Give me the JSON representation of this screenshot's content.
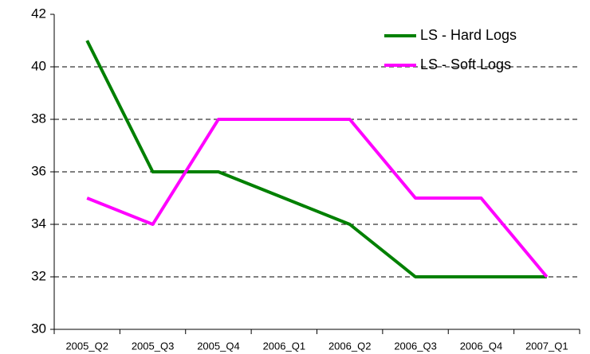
{
  "chart_data": {
    "type": "line",
    "categories": [
      "2005_Q2",
      "2005_Q3",
      "2005_Q4",
      "2006_Q1",
      "2006_Q2",
      "2006_Q3",
      "2006_Q4",
      "2007_Q1"
    ],
    "series": [
      {
        "name": "LS - Hard Logs",
        "color": "#008000",
        "values": [
          41,
          36,
          36,
          35,
          34,
          32,
          32,
          32
        ]
      },
      {
        "name": "LS - Soft Logs",
        "color": "#ff00ff",
        "values": [
          35,
          34,
          38,
          38,
          38,
          35,
          35,
          32
        ]
      }
    ],
    "ylim": [
      30,
      42
    ],
    "yticks": [
      30,
      32,
      34,
      36,
      38,
      40,
      42
    ],
    "grid": true,
    "legend": "upper right"
  }
}
